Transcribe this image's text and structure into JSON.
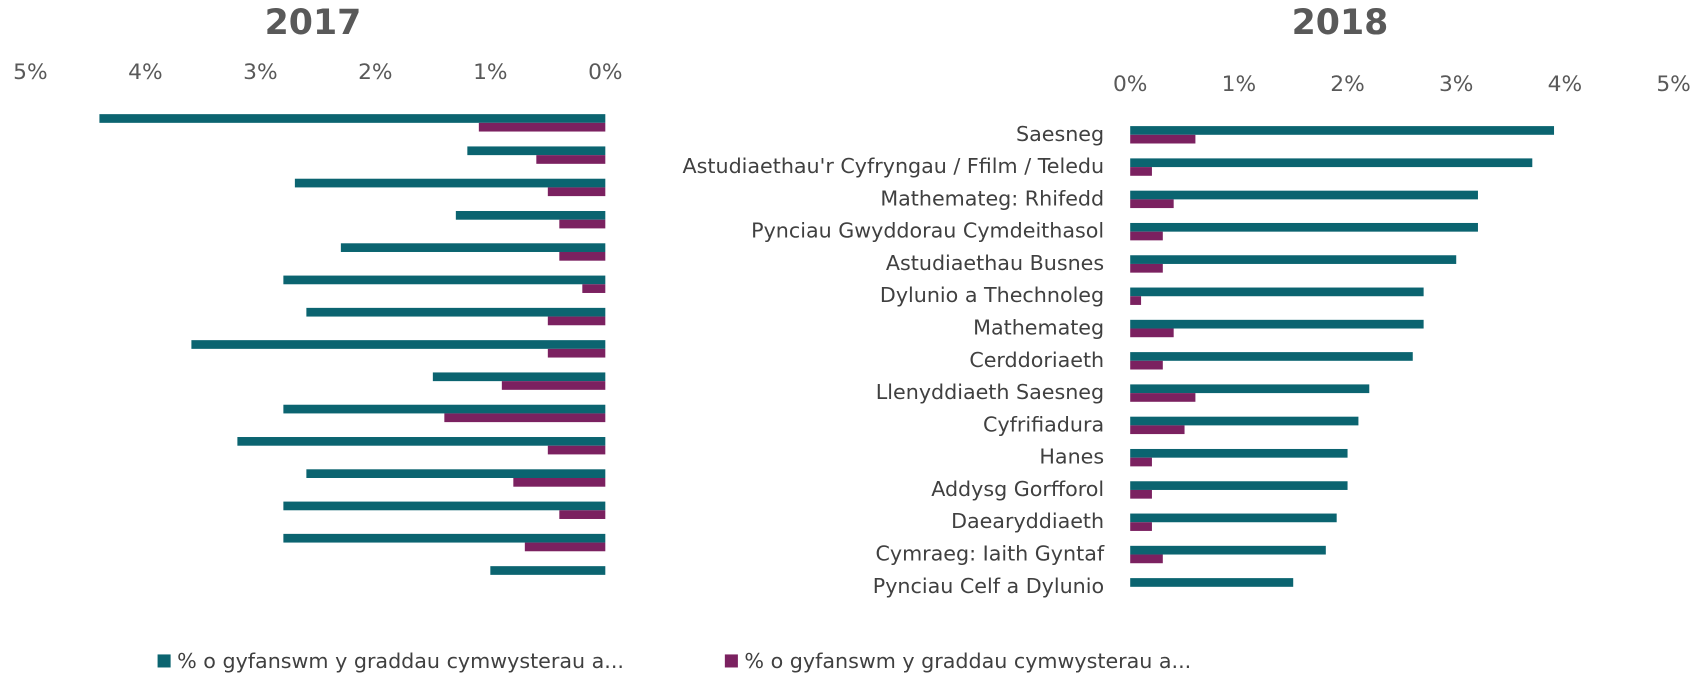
{
  "chart_data": [
    {
      "type": "bar",
      "orientation": "horizontal",
      "title": "2017",
      "x_reversed": true,
      "xlim": [
        0,
        5
      ],
      "xticks": [
        {
          "value": 5,
          "label": "5%"
        },
        {
          "value": 4,
          "label": "4%"
        },
        {
          "value": 3,
          "label": "3%"
        },
        {
          "value": 2,
          "label": "2%"
        },
        {
          "value": 1,
          "label": "1%"
        },
        {
          "value": 0,
          "label": "0%"
        }
      ],
      "series": [
        {
          "name": "% o gyfanswm y graddau cymwysterau a...",
          "color": "#0b6470",
          "values": [
            4.4,
            1.2,
            2.7,
            1.3,
            2.3,
            2.8,
            2.6,
            3.6,
            1.5,
            2.8,
            3.2,
            2.6,
            2.8,
            2.8,
            1.0
          ]
        },
        {
          "name": "% o gyfanswm y graddau cymwysterau a...",
          "color": "#7b2160",
          "values": [
            1.1,
            0.6,
            0.5,
            0.4,
            0.4,
            0.2,
            0.5,
            0.5,
            0.9,
            1.4,
            0.5,
            0.8,
            0.4,
            0.7,
            null
          ]
        }
      ]
    },
    {
      "type": "bar",
      "orientation": "horizontal",
      "title": "2018",
      "x_reversed": false,
      "xlim": [
        0,
        5
      ],
      "xticks": [
        {
          "value": 0,
          "label": "0%"
        },
        {
          "value": 1,
          "label": "1%"
        },
        {
          "value": 2,
          "label": "2%"
        },
        {
          "value": 3,
          "label": "3%"
        },
        {
          "value": 4,
          "label": "4%"
        },
        {
          "value": 5,
          "label": "5%"
        }
      ],
      "categories": [
        "Saesneg",
        "Astudiaethau'r Cyfryngau / Ffilm / Teledu",
        "Mathemateg: Rhifedd",
        "Pynciau Gwyddorau Cymdeithasol",
        "Astudiaethau Busnes",
        "Dylunio a Thechnoleg",
        "Mathemateg",
        "Cerddoriaeth",
        "Llenyddiaeth Saesneg",
        "Cyfrifiadura",
        "Hanes",
        "Addysg Gorfforol",
        "Daearyddiaeth",
        "Cymraeg: Iaith Gyntaf",
        "Pynciau Celf a Dylunio"
      ],
      "series": [
        {
          "name": "% o gyfanswm y graddau cymwysterau a...",
          "color": "#0b6470",
          "values": [
            3.9,
            3.7,
            3.2,
            3.2,
            3.0,
            2.7,
            2.7,
            2.6,
            2.2,
            2.1,
            2.0,
            2.0,
            1.9,
            1.8,
            1.5
          ]
        },
        {
          "name": "% o gyfanswm y graddau cymwysterau a...",
          "color": "#7b2160",
          "values": [
            0.6,
            0.2,
            0.4,
            0.3,
            0.3,
            0.1,
            0.4,
            0.3,
            0.6,
            0.5,
            0.2,
            0.2,
            0.2,
            0.3,
            null
          ]
        }
      ]
    }
  ]
}
